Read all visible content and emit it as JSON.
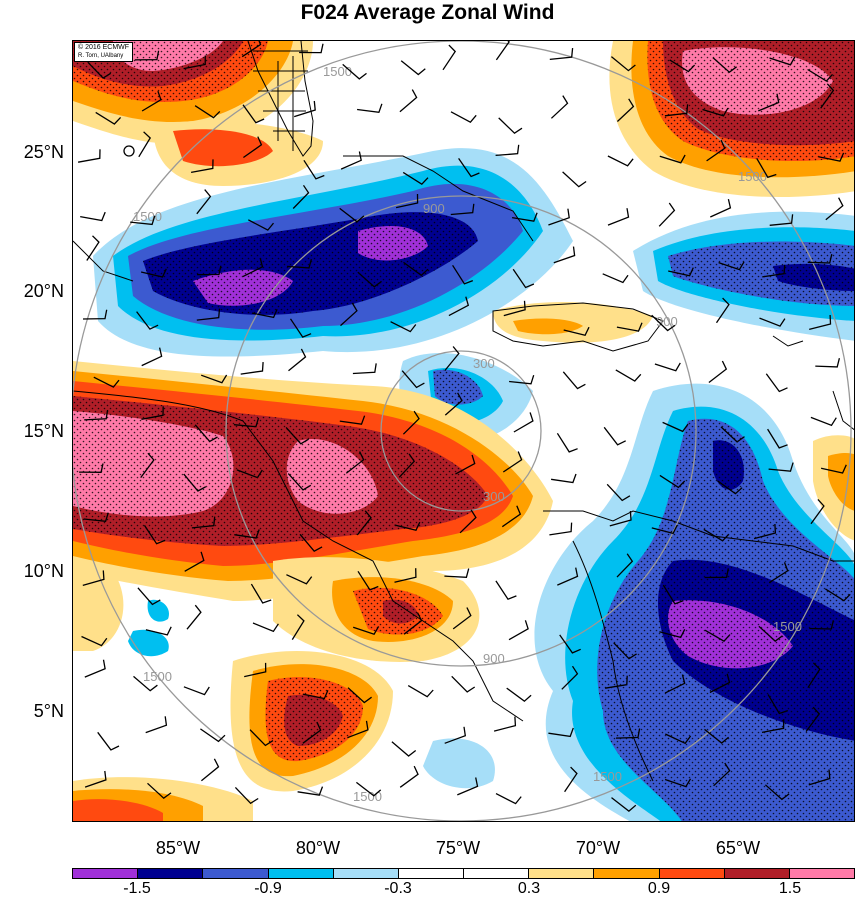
{
  "title": "F024 Average Zonal Wind",
  "credit": {
    "line1": "© 2016 ECMWF",
    "line2": "R. Torn, UAlbany"
  },
  "lat_labels": [
    "25°N",
    "20°N",
    "15°N",
    "10°N",
    "5°N"
  ],
  "lon_labels": [
    "85°W",
    "80°W",
    "75°W",
    "70°W",
    "65°W"
  ],
  "colorbar": {
    "colors": [
      "#a030d8",
      "#000090",
      "#3c5ad0",
      "#00bff0",
      "#a6def8",
      "#ffffff",
      "#ffffff",
      "#ffe08a",
      "#ffa000",
      "#ff4a10",
      "#b01e28",
      "#ff7aa8"
    ],
    "labels": [
      "-1.5",
      "-0.9",
      "-0.3",
      "0.3",
      "0.9",
      "1.5"
    ]
  },
  "range_rings": {
    "color": "#999999",
    "labels": [
      "300",
      "900",
      "1500"
    ]
  }
}
